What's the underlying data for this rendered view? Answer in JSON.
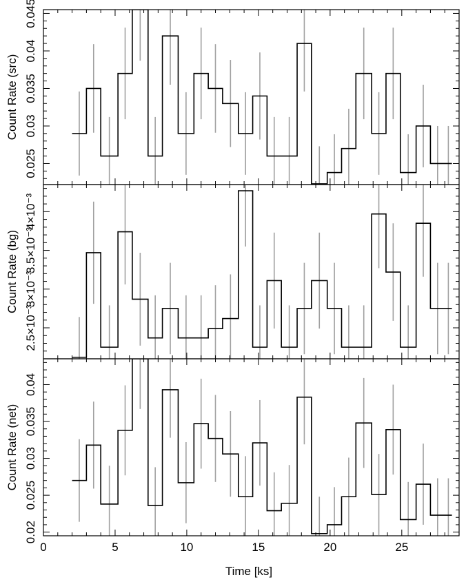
{
  "chart_data": {
    "type": "line",
    "layout": "three stacked panels sharing the x axis",
    "xlabel": "Time [ks]",
    "xlim": [
      0,
      29
    ],
    "x_ticks": [
      0,
      5,
      10,
      15,
      20,
      25
    ],
    "x_tick_labels": [
      "0",
      "5",
      "10",
      "15",
      "20",
      "25"
    ],
    "colors": {
      "line": "#000000",
      "error_bar": "#a0a0a0"
    },
    "bins": [
      [
        2.0,
        3.0
      ],
      [
        3.0,
        4.0
      ],
      [
        4.0,
        5.2
      ],
      [
        5.2,
        6.2
      ],
      [
        6.2,
        7.3
      ],
      [
        7.3,
        8.3
      ],
      [
        8.3,
        9.4
      ],
      [
        9.4,
        10.5
      ],
      [
        10.5,
        11.5
      ],
      [
        11.5,
        12.5
      ],
      [
        12.5,
        13.6
      ],
      [
        13.6,
        14.6
      ],
      [
        14.6,
        15.6
      ],
      [
        15.6,
        16.6
      ],
      [
        16.6,
        17.7
      ],
      [
        17.7,
        18.7
      ],
      [
        18.7,
        19.8
      ],
      [
        19.8,
        20.8
      ],
      [
        20.8,
        21.8
      ],
      [
        21.8,
        22.9
      ],
      [
        22.9,
        23.9
      ],
      [
        23.9,
        24.9
      ],
      [
        24.9,
        26.0
      ],
      [
        26.0,
        27.0
      ],
      [
        27.0,
        28.0
      ],
      [
        28.0,
        28.5
      ]
    ],
    "panels": [
      {
        "ylabel": "Count Rate (src)",
        "ylim": [
          0.0222,
          0.0455
        ],
        "y_ticks": [
          0.025,
          0.03,
          0.035,
          0.04,
          0.045
        ],
        "y_tick_labels": [
          "0.025",
          "0.03",
          "0.035",
          "0.04",
          "0.045"
        ],
        "values": [
          0.029,
          0.035,
          0.026,
          0.037,
          0.0455,
          0.026,
          0.042,
          0.029,
          0.037,
          0.035,
          0.033,
          0.029,
          0.034,
          0.026,
          0.026,
          0.041,
          0.0223,
          0.0238,
          0.027,
          0.037,
          0.029,
          0.037,
          0.0238,
          0.03,
          0.025,
          0.025
        ],
        "errors": [
          0.0056,
          0.0059,
          0.0052,
          0.0061,
          0.0068,
          0.0052,
          0.0065,
          0.0055,
          0.0061,
          0.0059,
          0.0058,
          0.0055,
          0.0058,
          0.0052,
          0.0052,
          0.0064,
          0.005,
          0.0051,
          0.0053,
          0.0061,
          0.0055,
          0.0061,
          0.0051,
          0.0055,
          0.005,
          0.005
        ]
      },
      {
        "ylabel": "Count Rate (bg)",
        "scale_label": "×10⁻³",
        "ylim": [
          2.1,
          4.35
        ],
        "y_ticks": [
          2.5,
          3.0,
          3.5,
          4.0
        ],
        "y_tick_labels": [
          "2.5×10⁻³",
          "3×10⁻³",
          "3.5×10⁻³",
          "4×10⁻³"
        ],
        "values": [
          2.12,
          3.47,
          2.25,
          3.74,
          2.87,
          2.37,
          2.75,
          2.37,
          2.37,
          2.49,
          2.62,
          4.27,
          2.25,
          3.11,
          2.25,
          2.75,
          3.11,
          2.75,
          2.25,
          2.25,
          3.97,
          3.22,
          2.25,
          3.85,
          2.75,
          2.75
        ],
        "errors": [
          0.52,
          0.66,
          0.54,
          0.68,
          0.6,
          0.55,
          0.59,
          0.55,
          0.55,
          0.56,
          0.57,
          0.72,
          0.54,
          0.62,
          0.54,
          0.59,
          0.62,
          0.59,
          0.54,
          0.54,
          0.7,
          0.63,
          0.54,
          0.69,
          0.59,
          0.59
        ]
      },
      {
        "ylabel": "Count Rate (net)",
        "ylim": [
          0.0195,
          0.0435
        ],
        "y_ticks": [
          0.02,
          0.025,
          0.03,
          0.035,
          0.04
        ],
        "y_tick_labels": [
          "0.02",
          "0.025",
          "0.03",
          "0.035",
          "0.04"
        ],
        "values": [
          0.027,
          0.0318,
          0.0238,
          0.0338,
          0.0435,
          0.0236,
          0.0393,
          0.0267,
          0.0347,
          0.0327,
          0.0306,
          0.0248,
          0.0321,
          0.0229,
          0.0239,
          0.0383,
          0.0198,
          0.021,
          0.0248,
          0.0348,
          0.0251,
          0.0339,
          0.0217,
          0.0265,
          0.0223,
          0.0223
        ],
        "errors": [
          0.0056,
          0.0059,
          0.0052,
          0.0061,
          0.0068,
          0.0052,
          0.0065,
          0.0055,
          0.0061,
          0.0059,
          0.0058,
          0.0055,
          0.0058,
          0.0052,
          0.0052,
          0.0064,
          0.005,
          0.0051,
          0.0053,
          0.0061,
          0.0055,
          0.0061,
          0.0051,
          0.0055,
          0.005,
          0.005
        ]
      }
    ]
  }
}
